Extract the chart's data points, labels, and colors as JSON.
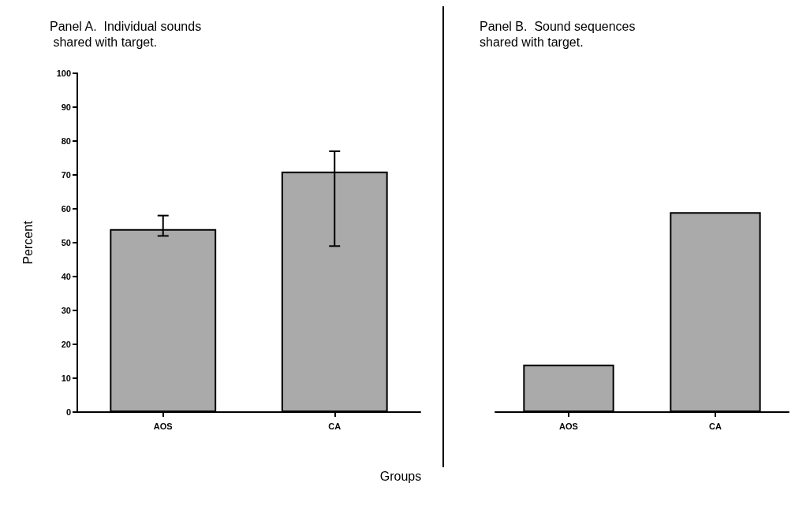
{
  "chart_data": [
    {
      "type": "bar",
      "title": "Panel A.  Individual sounds\n shared with target.",
      "ylabel": "Percent",
      "xlabel": "Groups",
      "categories": [
        "AOS",
        "CA"
      ],
      "values": [
        54,
        71
      ],
      "errors": [
        [
          52,
          58
        ],
        [
          49,
          77
        ]
      ],
      "color": "#aaaaaa",
      "ylim": [
        0,
        100
      ],
      "yticks": [
        0,
        10,
        20,
        30,
        40,
        50,
        60,
        70,
        80,
        90,
        100
      ],
      "grid": false
    },
    {
      "type": "bar",
      "title": "Panel B.  Sound sequences\nshared with target.",
      "categories": [
        "AOS",
        "CA"
      ],
      "values": [
        14,
        59
      ],
      "color": "#aaaaaa",
      "ylim": [
        0,
        100
      ],
      "yticks": [
        0,
        10,
        20,
        30,
        40,
        50,
        60,
        70,
        80,
        90,
        100
      ],
      "tick_labels": "x",
      "grid": false
    }
  ]
}
